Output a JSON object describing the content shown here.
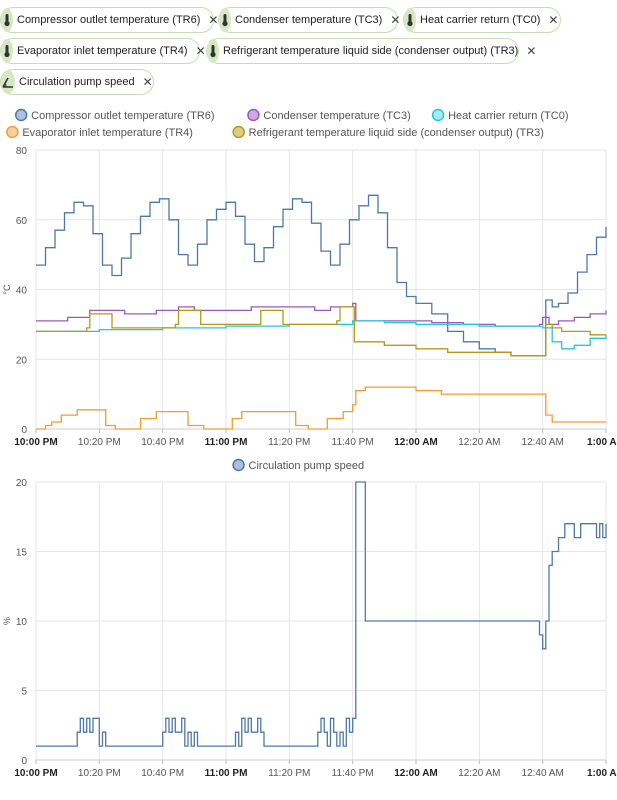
{
  "filters": [
    {
      "label": "Compressor outlet temperature (TR6)",
      "icon": "thermometer-icon"
    },
    {
      "label": "Condenser temperature (TC3)",
      "icon": "thermometer-icon"
    },
    {
      "label": "Heat carrier return (TC0)",
      "icon": "thermometer-icon"
    },
    {
      "label": "Evaporator inlet temperature (TR4)",
      "icon": "thermometer-icon"
    },
    {
      "label": "Refrigerant temperature liquid side (condenser output) (TR3)",
      "icon": "thermometer-icon"
    },
    {
      "label": "Circulation pump speed",
      "icon": "gauge-icon"
    }
  ],
  "remove_symbol": "✕",
  "chart_data": [
    {
      "type": "line",
      "xlabel": "",
      "ylabel": "°C",
      "ylim": [
        0,
        80
      ],
      "yticks": [
        0,
        20,
        40,
        60,
        80
      ],
      "xlim_minutes": [
        0,
        120
      ],
      "xticks": [
        {
          "m": 0,
          "label": "10:00 PM",
          "bold": true
        },
        {
          "m": 20,
          "label": "10:20 PM",
          "bold": false
        },
        {
          "m": 40,
          "label": "10:40 PM",
          "bold": false
        },
        {
          "m": 60,
          "label": "11:00 PM",
          "bold": true
        },
        {
          "m": 80,
          "label": "11:20 PM",
          "bold": false
        },
        {
          "m": 100,
          "label": "11:40 PM",
          "bold": false
        },
        {
          "m": 120,
          "label": "12:00 AM",
          "bold": true
        },
        {
          "m": 140,
          "label": "12:20 AM",
          "bold": false
        },
        {
          "m": 160,
          "label": "12:40 AM",
          "bold": false
        },
        {
          "m": 180,
          "label": "1:00 AM",
          "bold": true
        }
      ],
      "grid": true,
      "legend_position": "top",
      "series": [
        {
          "name": "Compressor outlet temperature (TR6)",
          "color": "#4e79a7",
          "fill": "#a9c1dc",
          "x": [
            0,
            3,
            6,
            9,
            12,
            15,
            18,
            21,
            24,
            27,
            30,
            33,
            36,
            39,
            42,
            45,
            48,
            51,
            54,
            57,
            60,
            63,
            66,
            69,
            72,
            75,
            78,
            81,
            84,
            87,
            90,
            93,
            96,
            99,
            102,
            105,
            108,
            111,
            114,
            117,
            120,
            125,
            130,
            135,
            140,
            145,
            150,
            155,
            160,
            161,
            162,
            163,
            165,
            168,
            171,
            174,
            177,
            180
          ],
          "y": [
            47,
            52,
            57,
            62,
            65,
            64,
            56,
            47,
            44,
            49,
            56,
            61,
            65,
            66,
            60,
            50,
            47,
            53,
            60,
            63,
            65,
            61,
            53,
            48,
            52,
            58,
            63,
            66,
            65,
            59,
            51,
            47,
            53,
            60,
            64,
            67,
            62,
            52,
            42,
            38,
            36,
            33,
            28,
            25,
            23,
            22,
            21,
            21,
            21,
            37,
            37,
            35,
            36,
            39,
            45,
            50,
            55,
            58
          ]
        },
        {
          "name": "Condenser temperature (TC3)",
          "color": "#9b59b6",
          "fill": "#cfa9dd",
          "x": [
            0,
            10,
            17,
            22,
            28,
            38,
            45,
            50,
            60,
            68,
            73,
            80,
            88,
            93,
            100,
            101,
            105,
            115,
            125,
            135,
            145,
            155,
            159,
            160,
            162,
            165,
            170,
            175,
            180
          ],
          "y": [
            31,
            32,
            34,
            34,
            33,
            34,
            35,
            34,
            34,
            35,
            35,
            35,
            34,
            35,
            36,
            31,
            31,
            31,
            30.5,
            30,
            29.5,
            29.5,
            30,
            32,
            30,
            31,
            32,
            33,
            34
          ]
        },
        {
          "name": "Heat carrier return (TC0)",
          "color": "#26c6da",
          "fill": "#a6ecf2",
          "x": [
            0,
            20,
            40,
            60,
            80,
            100,
            110,
            120,
            140,
            158,
            160,
            163,
            166,
            170,
            175,
            180
          ],
          "y": [
            28,
            28.5,
            29,
            29.5,
            30,
            31,
            30.5,
            30,
            29.5,
            29.5,
            29,
            25,
            23,
            24,
            26,
            27
          ]
        },
        {
          "name": "Evaporator inlet temperature (TR4)",
          "color": "#f39c33",
          "fill": "#f8cfa2",
          "x": [
            0,
            3,
            5,
            8,
            13,
            17,
            22,
            25,
            28,
            33,
            38,
            45,
            48,
            53,
            58,
            62,
            65,
            70,
            78,
            82,
            86,
            88,
            92,
            97,
            100,
            101,
            104,
            110,
            120,
            128,
            135,
            140,
            145,
            150,
            155,
            160,
            161,
            163,
            180
          ],
          "y": [
            0,
            1,
            2,
            4,
            5.5,
            5.5,
            1,
            0,
            0,
            3,
            5,
            5,
            1,
            0,
            0,
            3,
            5,
            5,
            5,
            1,
            0,
            0,
            3,
            5,
            7,
            11,
            12,
            12,
            11,
            10,
            10,
            10,
            10,
            10,
            10,
            10,
            4,
            2,
            2
          ]
        },
        {
          "name": "Refrigerant temperature liquid side (condenser output) (TR3)",
          "color": "#b59a1a",
          "fill": "#dccd8a",
          "x": [
            0,
            16,
            17,
            20,
            22,
            24,
            44,
            45,
            48,
            50,
            52,
            70,
            71,
            74,
            76,
            78,
            95,
            96,
            99,
            100,
            100.5,
            102,
            110,
            120,
            130,
            140,
            150,
            158,
            160,
            161,
            163,
            166,
            170,
            175,
            180
          ],
          "y": [
            28,
            29,
            33,
            33,
            33,
            29,
            30,
            34,
            34,
            34,
            30,
            30,
            34,
            34,
            34,
            30,
            31,
            35,
            35,
            35,
            25,
            25,
            24,
            23,
            22,
            22,
            21,
            21,
            21,
            30,
            29,
            28,
            28,
            27,
            27
          ]
        }
      ]
    },
    {
      "type": "line",
      "xlabel": "",
      "ylabel": "%",
      "ylim": [
        0,
        20
      ],
      "yticks": [
        0,
        5,
        10,
        15,
        20
      ],
      "xlim_minutes": [
        0,
        120
      ],
      "xticks": [
        {
          "m": 0,
          "label": "10:00 PM",
          "bold": true
        },
        {
          "m": 20,
          "label": "10:20 PM",
          "bold": false
        },
        {
          "m": 40,
          "label": "10:40 PM",
          "bold": false
        },
        {
          "m": 60,
          "label": "11:00 PM",
          "bold": true
        },
        {
          "m": 80,
          "label": "11:20 PM",
          "bold": false
        },
        {
          "m": 100,
          "label": "11:40 PM",
          "bold": false
        },
        {
          "m": 120,
          "label": "12:00 AM",
          "bold": true
        },
        {
          "m": 140,
          "label": "12:20 AM",
          "bold": false
        },
        {
          "m": 160,
          "label": "12:40 AM",
          "bold": false
        },
        {
          "m": 180,
          "label": "1:00 AM",
          "bold": true
        }
      ],
      "grid": true,
      "legend_position": "top",
      "series": [
        {
          "name": "Circulation pump speed",
          "color": "#4e79a7",
          "fill": "#a9c1dc",
          "x": [
            0,
            13,
            14,
            15,
            16,
            17,
            18,
            20,
            21,
            22,
            40,
            41,
            42,
            43,
            44,
            46,
            47,
            48,
            49,
            50,
            51,
            58,
            62,
            63,
            64,
            65,
            66,
            67,
            68,
            70,
            71,
            72,
            88,
            89,
            90,
            91,
            92,
            93,
            94,
            95,
            96,
            97,
            98,
            99,
            100,
            101,
            103,
            104,
            105,
            158,
            159,
            160,
            161,
            162,
            163,
            165,
            167,
            170,
            172,
            175,
            177,
            178,
            179,
            180
          ],
          "y": [
            1,
            2,
            3,
            2,
            3,
            2,
            3,
            1,
            2,
            1,
            2,
            3,
            2,
            3,
            2,
            3,
            1,
            2,
            1,
            2,
            1,
            1,
            1,
            2,
            1,
            3,
            2,
            3,
            2,
            3,
            2,
            1,
            1,
            2,
            3,
            2,
            1,
            3,
            2,
            1,
            2,
            1,
            3,
            2,
            3,
            20,
            20,
            10,
            10,
            10,
            9,
            8,
            10,
            14,
            15,
            16,
            17,
            16,
            17,
            17,
            16,
            17,
            16,
            17
          ]
        }
      ]
    }
  ]
}
